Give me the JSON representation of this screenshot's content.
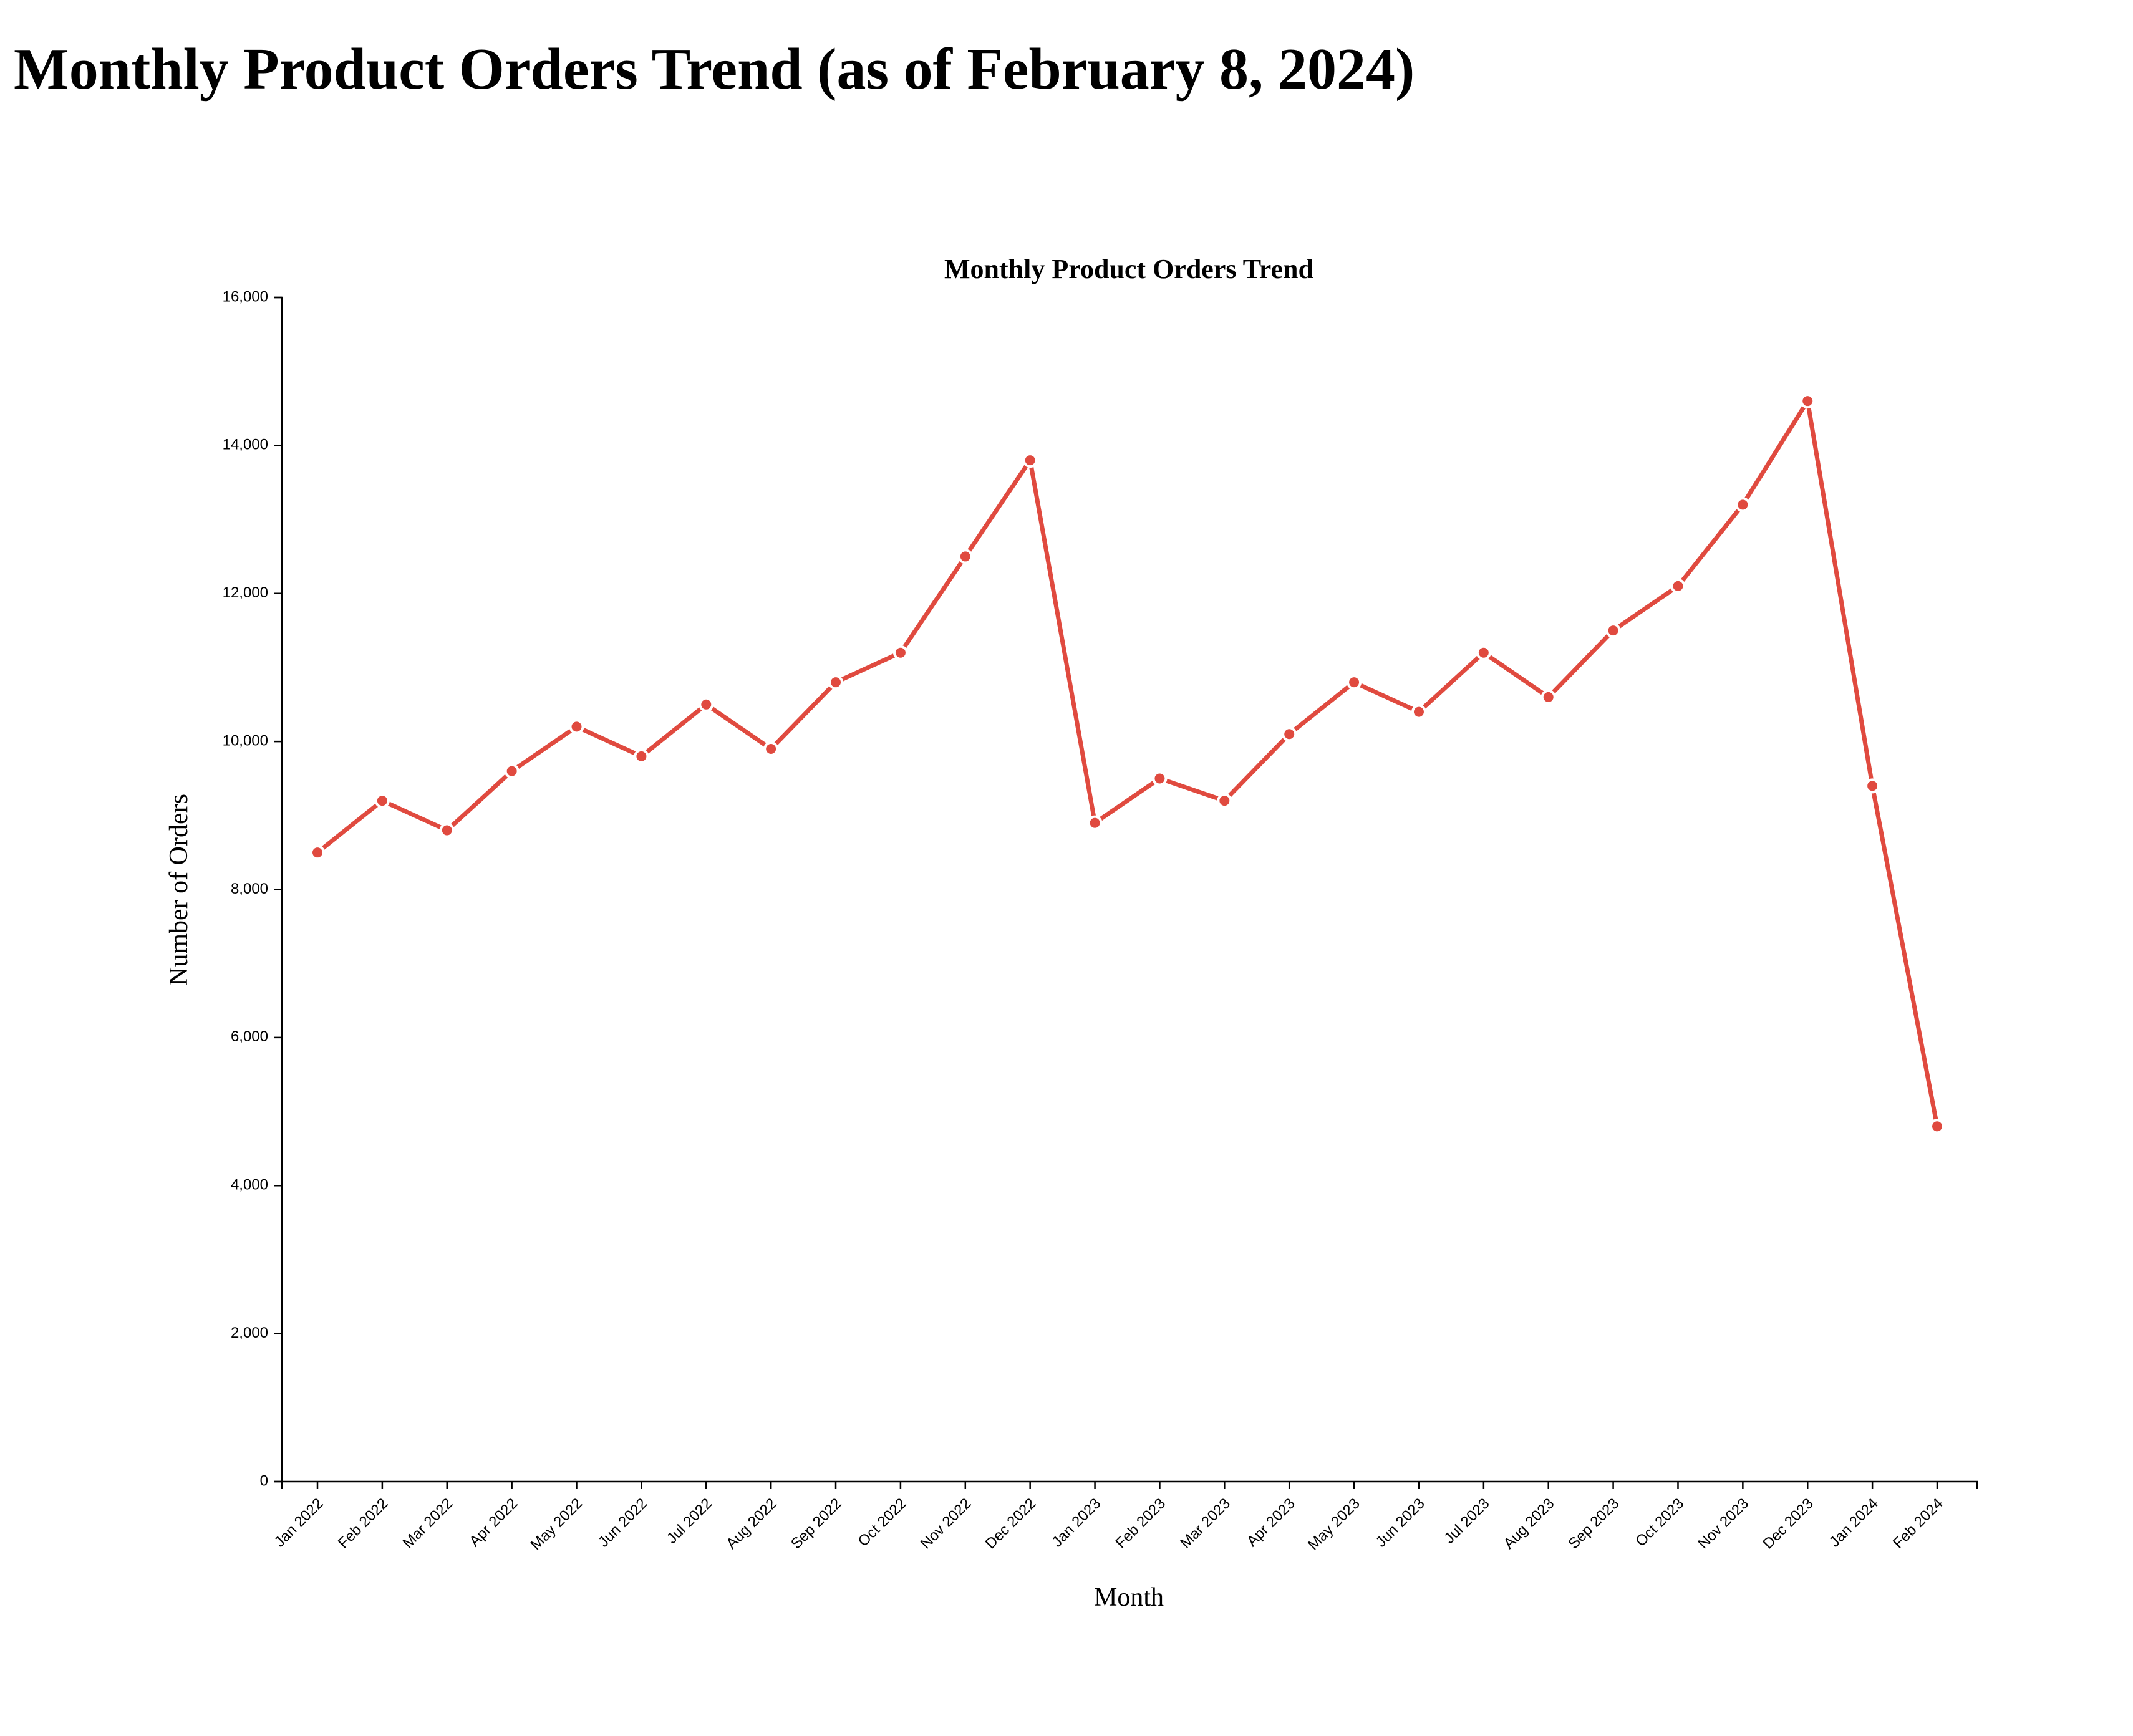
{
  "page": {
    "title": "Monthly Product Orders Trend (as of February 8, 2024)"
  },
  "chart_data": {
    "type": "line",
    "title": "Monthly Product Orders Trend",
    "xlabel": "Month",
    "ylabel": "Number of Orders",
    "categories": [
      "Jan 2022",
      "Feb 2022",
      "Mar 2022",
      "Apr 2022",
      "May 2022",
      "Jun 2022",
      "Jul 2022",
      "Aug 2022",
      "Sep 2022",
      "Oct 2022",
      "Nov 2022",
      "Dec 2022",
      "Jan 2023",
      "Feb 2023",
      "Mar 2023",
      "Apr 2023",
      "May 2023",
      "Jun 2023",
      "Jul 2023",
      "Aug 2023",
      "Sep 2023",
      "Oct 2023",
      "Nov 2023",
      "Dec 2023",
      "Jan 2024",
      "Feb 2024"
    ],
    "series": [
      {
        "values": [
          8500,
          9200,
          8800,
          9600,
          10200,
          9800,
          10500,
          9900,
          10800,
          11200,
          12500,
          13800,
          8900,
          9500,
          9200,
          10100,
          10800,
          10400,
          11200,
          10600,
          11500,
          12100,
          13200,
          14600,
          9400,
          4800
        ]
      }
    ],
    "ylim": [
      0,
      16000
    ],
    "yticks": [
      0,
      2000,
      4000,
      6000,
      8000,
      10000,
      12000,
      14000,
      16000
    ],
    "ytick_labels": [
      "0",
      "2,000",
      "4,000",
      "6,000",
      "8,000",
      "10,000",
      "12,000",
      "14,000",
      "16,000"
    ],
    "grid": false,
    "legend": "none",
    "colors": {
      "line": "#e04a3f",
      "axis": "#000000",
      "marker_stroke": "#ffffff"
    }
  }
}
